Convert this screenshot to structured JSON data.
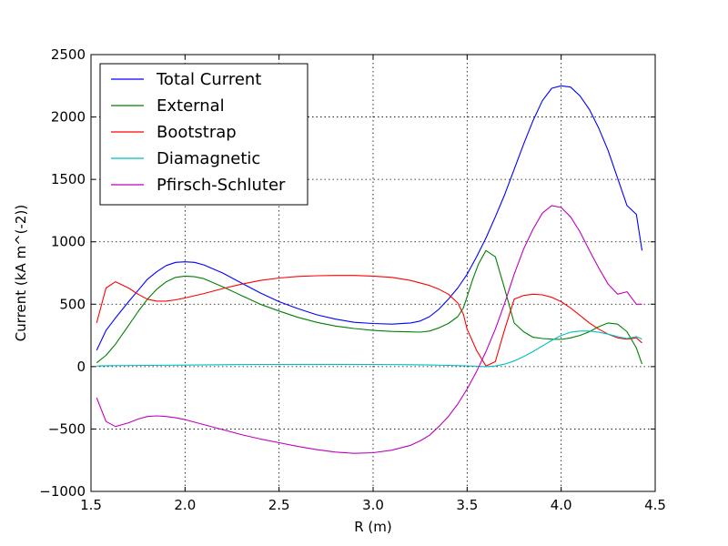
{
  "chart_data": {
    "type": "line",
    "title": "",
    "xlabel": "R (m)",
    "ylabel": "Current (kA m^(-2))",
    "xlim": [
      1.5,
      4.5
    ],
    "ylim": [
      -1000,
      2500
    ],
    "xticks": [
      1.5,
      2.0,
      2.5,
      3.0,
      3.5,
      4.0,
      4.5
    ],
    "xtick_labels": [
      "1.5",
      "2.0",
      "2.5",
      "3.0",
      "3.5",
      "4.0",
      "4.5"
    ],
    "yticks": [
      -1000,
      -500,
      0,
      500,
      1000,
      1500,
      2000,
      2500
    ],
    "ytick_labels": [
      "−1000",
      "−500",
      "0",
      "500",
      "1000",
      "1500",
      "2000",
      "2500"
    ],
    "grid": true,
    "legend_position": "top-left",
    "series": [
      {
        "name": "Total Current",
        "color": "#0000ff",
        "x": [
          1.53,
          1.58,
          1.63,
          1.7,
          1.75,
          1.8,
          1.85,
          1.9,
          1.95,
          2.0,
          2.05,
          2.1,
          2.2,
          2.3,
          2.4,
          2.5,
          2.6,
          2.7,
          2.8,
          2.9,
          3.0,
          3.1,
          3.2,
          3.25,
          3.3,
          3.35,
          3.4,
          3.45,
          3.5,
          3.55,
          3.6,
          3.65,
          3.7,
          3.75,
          3.8,
          3.85,
          3.9,
          3.95,
          4.0,
          4.05,
          4.1,
          4.15,
          4.2,
          4.25,
          4.3,
          4.35,
          4.4,
          4.43
        ],
        "y": [
          130,
          290,
          390,
          520,
          610,
          700,
          760,
          810,
          835,
          840,
          835,
          815,
          750,
          670,
          590,
          520,
          465,
          415,
          380,
          355,
          345,
          340,
          350,
          365,
          400,
          460,
          540,
          630,
          740,
          880,
          1030,
          1200,
          1380,
          1580,
          1780,
          1970,
          2130,
          2230,
          2250,
          2240,
          2170,
          2060,
          1910,
          1730,
          1510,
          1290,
          1220,
          930
        ]
      },
      {
        "name": "External",
        "color": "#008000",
        "x": [
          1.53,
          1.58,
          1.63,
          1.7,
          1.75,
          1.8,
          1.85,
          1.9,
          1.95,
          2.0,
          2.05,
          2.1,
          2.2,
          2.3,
          2.4,
          2.5,
          2.6,
          2.7,
          2.8,
          2.9,
          3.0,
          3.1,
          3.2,
          3.25,
          3.3,
          3.35,
          3.4,
          3.45,
          3.48,
          3.5,
          3.53,
          3.56,
          3.6,
          3.65,
          3.7,
          3.75,
          3.8,
          3.85,
          3.9,
          3.95,
          4.0,
          4.05,
          4.1,
          4.15,
          4.2,
          4.25,
          4.3,
          4.35,
          4.4,
          4.43
        ],
        "y": [
          30,
          90,
          180,
          330,
          440,
          540,
          620,
          680,
          715,
          725,
          720,
          705,
          640,
          570,
          500,
          445,
          395,
          355,
          325,
          305,
          290,
          282,
          278,
          276,
          285,
          310,
          345,
          400,
          470,
          560,
          700,
          820,
          930,
          880,
          620,
          350,
          280,
          235,
          225,
          220,
          218,
          230,
          250,
          280,
          320,
          350,
          340,
          280,
          150,
          20
        ]
      },
      {
        "name": "Bootstrap",
        "color": "#ff0000",
        "x": [
          1.53,
          1.58,
          1.63,
          1.7,
          1.75,
          1.8,
          1.85,
          1.9,
          1.95,
          2.0,
          2.1,
          2.2,
          2.3,
          2.4,
          2.5,
          2.6,
          2.7,
          2.8,
          2.9,
          3.0,
          3.1,
          3.2,
          3.3,
          3.35,
          3.4,
          3.45,
          3.48,
          3.5,
          3.55,
          3.6,
          3.65,
          3.7,
          3.75,
          3.8,
          3.85,
          3.9,
          3.95,
          4.0,
          4.05,
          4.1,
          4.15,
          4.2,
          4.25,
          4.3,
          4.35,
          4.4,
          4.43
        ],
        "y": [
          350,
          630,
          680,
          630,
          580,
          540,
          525,
          525,
          535,
          550,
          585,
          625,
          660,
          690,
          710,
          722,
          728,
          730,
          730,
          725,
          715,
          690,
          650,
          620,
          580,
          510,
          420,
          300,
          130,
          5,
          40,
          300,
          540,
          570,
          580,
          575,
          555,
          520,
          470,
          410,
          350,
          300,
          260,
          230,
          220,
          230,
          190
        ]
      },
      {
        "name": "Diamagnetic",
        "color": "#00bfbf",
        "x": [
          1.53,
          1.6,
          1.8,
          2.0,
          2.2,
          2.4,
          2.6,
          2.8,
          3.0,
          3.2,
          3.3,
          3.4,
          3.5,
          3.55,
          3.6,
          3.65,
          3.7,
          3.75,
          3.8,
          3.85,
          3.9,
          3.95,
          4.0,
          4.05,
          4.1,
          4.15,
          4.2,
          4.25,
          4.3,
          4.35,
          4.4,
          4.43
        ],
        "y": [
          5,
          8,
          10,
          12,
          15,
          17,
          18,
          18,
          17,
          15,
          13,
          10,
          6,
          3,
          0,
          5,
          20,
          45,
          80,
          120,
          165,
          210,
          250,
          275,
          285,
          285,
          275,
          260,
          240,
          225,
          240,
          220
        ]
      },
      {
        "name": "Pfirsch-Schluter",
        "color": "#bf00bf",
        "x": [
          1.53,
          1.58,
          1.63,
          1.7,
          1.75,
          1.8,
          1.85,
          1.9,
          1.95,
          2.0,
          2.1,
          2.2,
          2.3,
          2.4,
          2.5,
          2.6,
          2.7,
          2.8,
          2.9,
          3.0,
          3.1,
          3.2,
          3.25,
          3.3,
          3.35,
          3.4,
          3.45,
          3.5,
          3.55,
          3.6,
          3.65,
          3.7,
          3.75,
          3.8,
          3.85,
          3.9,
          3.95,
          4.0,
          4.05,
          4.1,
          4.15,
          4.2,
          4.25,
          4.3,
          4.35,
          4.4,
          4.43
        ],
        "y": [
          -250,
          -440,
          -480,
          -450,
          -420,
          -400,
          -395,
          -400,
          -410,
          -425,
          -465,
          -505,
          -545,
          -580,
          -610,
          -640,
          -665,
          -685,
          -695,
          -690,
          -670,
          -630,
          -595,
          -550,
          -480,
          -400,
          -300,
          -180,
          -40,
          120,
          300,
          510,
          740,
          940,
          1100,
          1230,
          1290,
          1275,
          1200,
          1080,
          930,
          790,
          660,
          580,
          600,
          500,
          500
        ]
      }
    ]
  }
}
